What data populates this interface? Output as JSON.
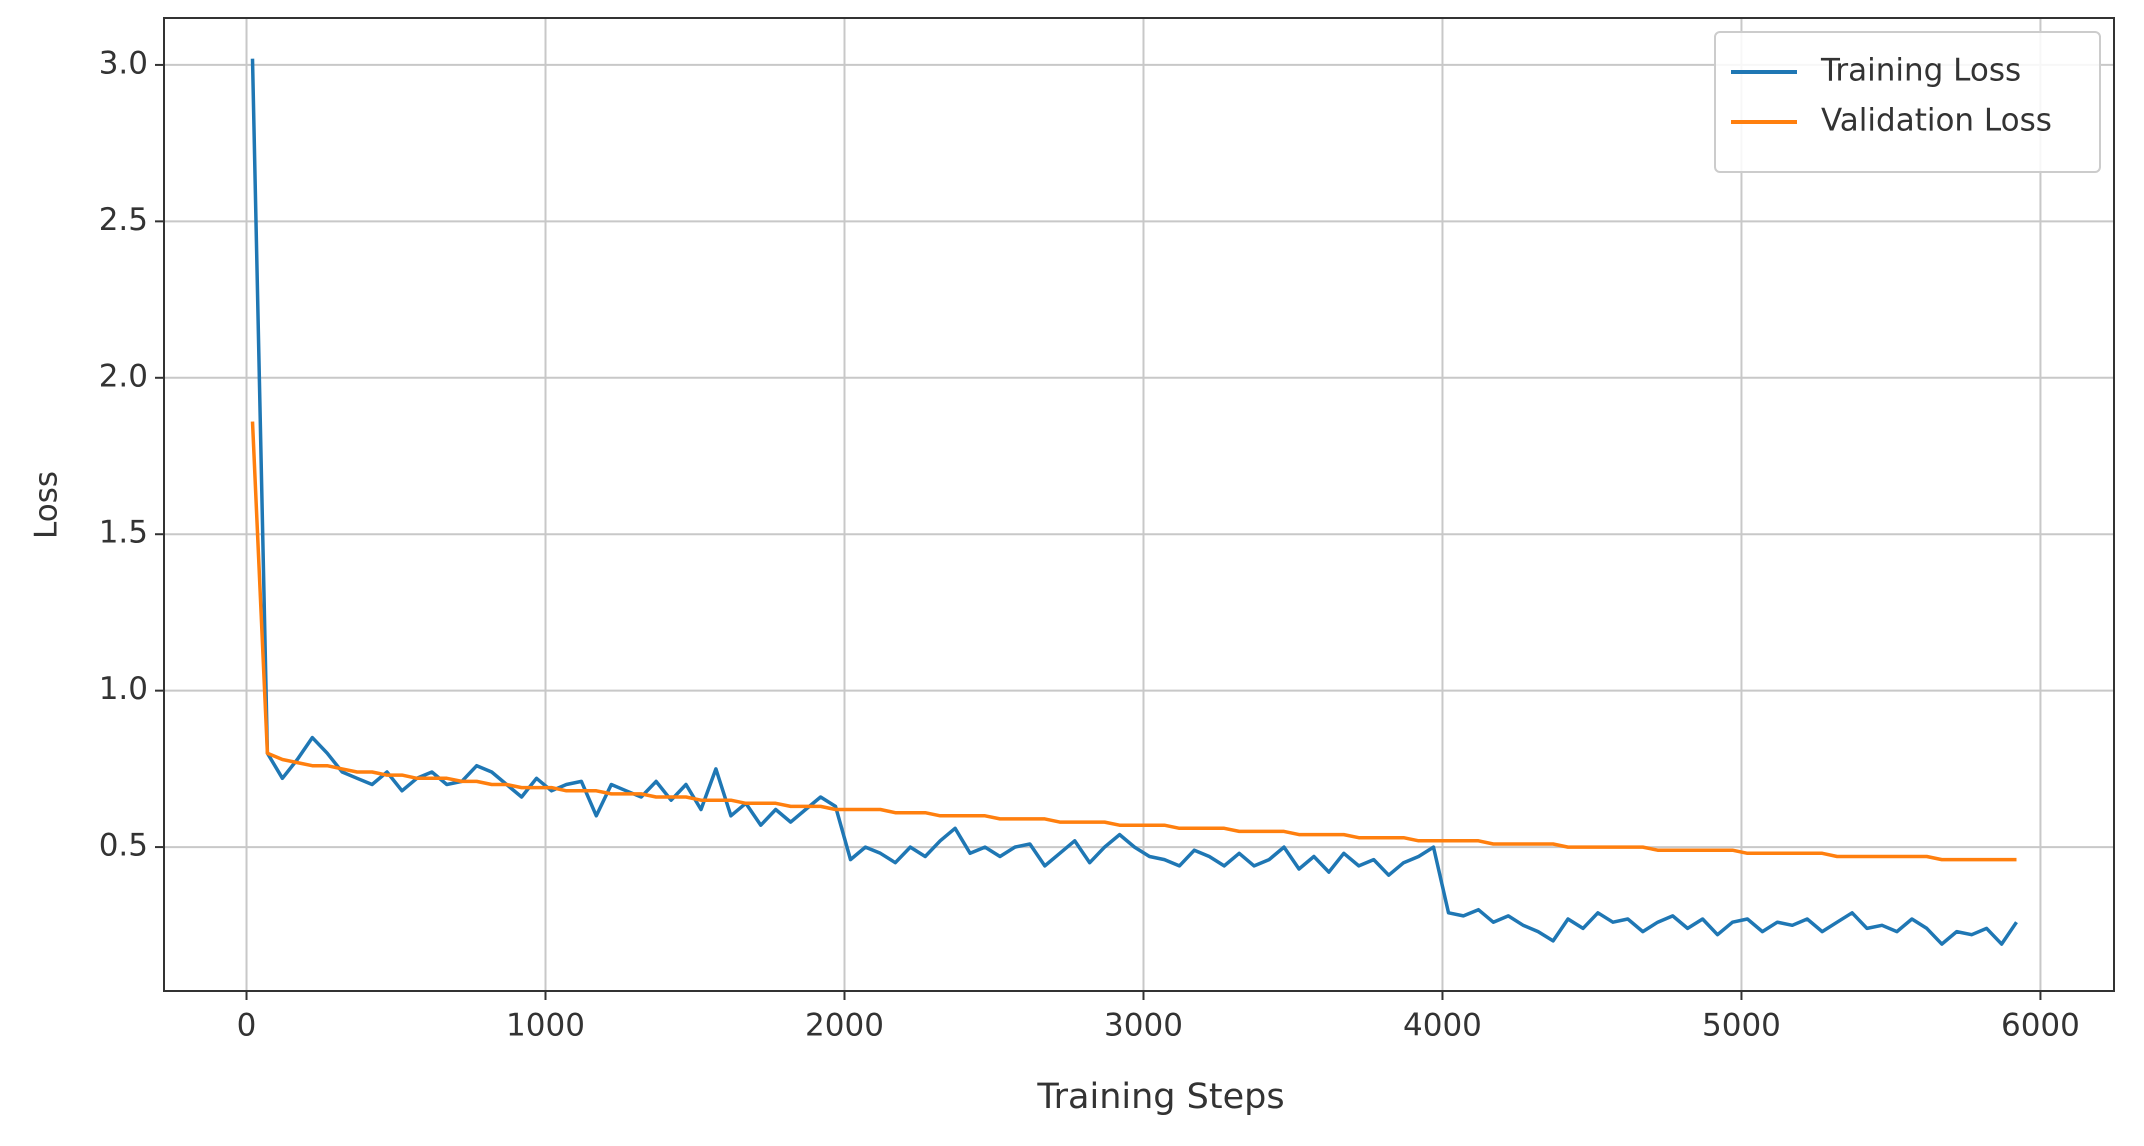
{
  "chart_data": {
    "type": "line",
    "x_label": "Training Steps",
    "y_label": "Loss",
    "x": [
      20,
      70,
      120,
      170,
      220,
      270,
      320,
      370,
      420,
      470,
      520,
      570,
      620,
      670,
      720,
      770,
      820,
      870,
      920,
      970,
      1020,
      1070,
      1120,
      1170,
      1220,
      1270,
      1320,
      1370,
      1420,
      1470,
      1520,
      1570,
      1620,
      1670,
      1720,
      1770,
      1820,
      1870,
      1920,
      1970,
      2020,
      2070,
      2120,
      2170,
      2220,
      2270,
      2320,
      2370,
      2420,
      2470,
      2520,
      2570,
      2620,
      2670,
      2720,
      2770,
      2820,
      2870,
      2920,
      2970,
      3020,
      3070,
      3120,
      3170,
      3220,
      3270,
      3320,
      3370,
      3420,
      3470,
      3520,
      3570,
      3620,
      3670,
      3720,
      3770,
      3820,
      3870,
      3920,
      3970,
      4020,
      4070,
      4120,
      4170,
      4220,
      4270,
      4320,
      4370,
      4420,
      4470,
      4520,
      4570,
      4620,
      4670,
      4720,
      4770,
      4820,
      4870,
      4920,
      4970,
      5020,
      5070,
      5120,
      5170,
      5220,
      5270,
      5320,
      5370,
      5420,
      5470,
      5520,
      5570,
      5620,
      5670,
      5720,
      5770,
      5820,
      5870,
      5920
    ],
    "series": [
      {
        "name": "Training Loss",
        "color": "#1f77b4",
        "values": [
          3.02,
          0.8,
          0.72,
          0.78,
          0.85,
          0.8,
          0.74,
          0.72,
          0.7,
          0.74,
          0.68,
          0.72,
          0.74,
          0.7,
          0.71,
          0.76,
          0.74,
          0.7,
          0.66,
          0.72,
          0.68,
          0.7,
          0.71,
          0.6,
          0.7,
          0.68,
          0.66,
          0.71,
          0.65,
          0.7,
          0.62,
          0.75,
          0.6,
          0.64,
          0.57,
          0.62,
          0.58,
          0.62,
          0.66,
          0.63,
          0.46,
          0.5,
          0.48,
          0.45,
          0.5,
          0.47,
          0.52,
          0.56,
          0.48,
          0.5,
          0.47,
          0.5,
          0.51,
          0.44,
          0.48,
          0.52,
          0.45,
          0.5,
          0.54,
          0.5,
          0.47,
          0.46,
          0.44,
          0.49,
          0.47,
          0.44,
          0.48,
          0.44,
          0.46,
          0.5,
          0.43,
          0.47,
          0.42,
          0.48,
          0.44,
          0.46,
          0.41,
          0.45,
          0.47,
          0.5,
          0.29,
          0.28,
          0.3,
          0.26,
          0.28,
          0.25,
          0.23,
          0.2,
          0.27,
          0.24,
          0.29,
          0.26,
          0.27,
          0.23,
          0.26,
          0.28,
          0.24,
          0.27,
          0.22,
          0.26,
          0.27,
          0.23,
          0.26,
          0.25,
          0.27,
          0.23,
          0.26,
          0.29,
          0.24,
          0.25,
          0.23,
          0.27,
          0.24,
          0.19,
          0.23,
          0.22,
          0.24,
          0.19,
          0.26
        ]
      },
      {
        "name": "Validation Loss",
        "color": "#ff7f0e",
        "values": [
          1.86,
          0.8,
          0.78,
          0.77,
          0.76,
          0.76,
          0.75,
          0.74,
          0.74,
          0.73,
          0.73,
          0.72,
          0.72,
          0.72,
          0.71,
          0.71,
          0.7,
          0.7,
          0.69,
          0.69,
          0.69,
          0.68,
          0.68,
          0.68,
          0.67,
          0.67,
          0.67,
          0.66,
          0.66,
          0.66,
          0.65,
          0.65,
          0.65,
          0.64,
          0.64,
          0.64,
          0.63,
          0.63,
          0.63,
          0.62,
          0.62,
          0.62,
          0.62,
          0.61,
          0.61,
          0.61,
          0.6,
          0.6,
          0.6,
          0.6,
          0.59,
          0.59,
          0.59,
          0.59,
          0.58,
          0.58,
          0.58,
          0.58,
          0.57,
          0.57,
          0.57,
          0.57,
          0.56,
          0.56,
          0.56,
          0.56,
          0.55,
          0.55,
          0.55,
          0.55,
          0.54,
          0.54,
          0.54,
          0.54,
          0.53,
          0.53,
          0.53,
          0.53,
          0.52,
          0.52,
          0.52,
          0.52,
          0.52,
          0.51,
          0.51,
          0.51,
          0.51,
          0.51,
          0.5,
          0.5,
          0.5,
          0.5,
          0.5,
          0.5,
          0.49,
          0.49,
          0.49,
          0.49,
          0.49,
          0.49,
          0.48,
          0.48,
          0.48,
          0.48,
          0.48,
          0.48,
          0.47,
          0.47,
          0.47,
          0.47,
          0.47,
          0.47,
          0.47,
          0.46,
          0.46,
          0.46,
          0.46,
          0.46,
          0.46
        ]
      }
    ],
    "xlim": [
      -276,
      6246
    ],
    "ylim": [
      0.04,
      3.15
    ],
    "xticks": [
      0,
      1000,
      2000,
      3000,
      4000,
      5000,
      6000
    ],
    "yticks": [
      0.5,
      {
        "value": 1.0,
        "label": "1.0"
      },
      1.5,
      {
        "value": 2.0,
        "label": "2.0"
      },
      2.5,
      {
        "value": 3.0,
        "label": "3.0"
      }
    ],
    "grid": true,
    "legend": "upper right"
  }
}
